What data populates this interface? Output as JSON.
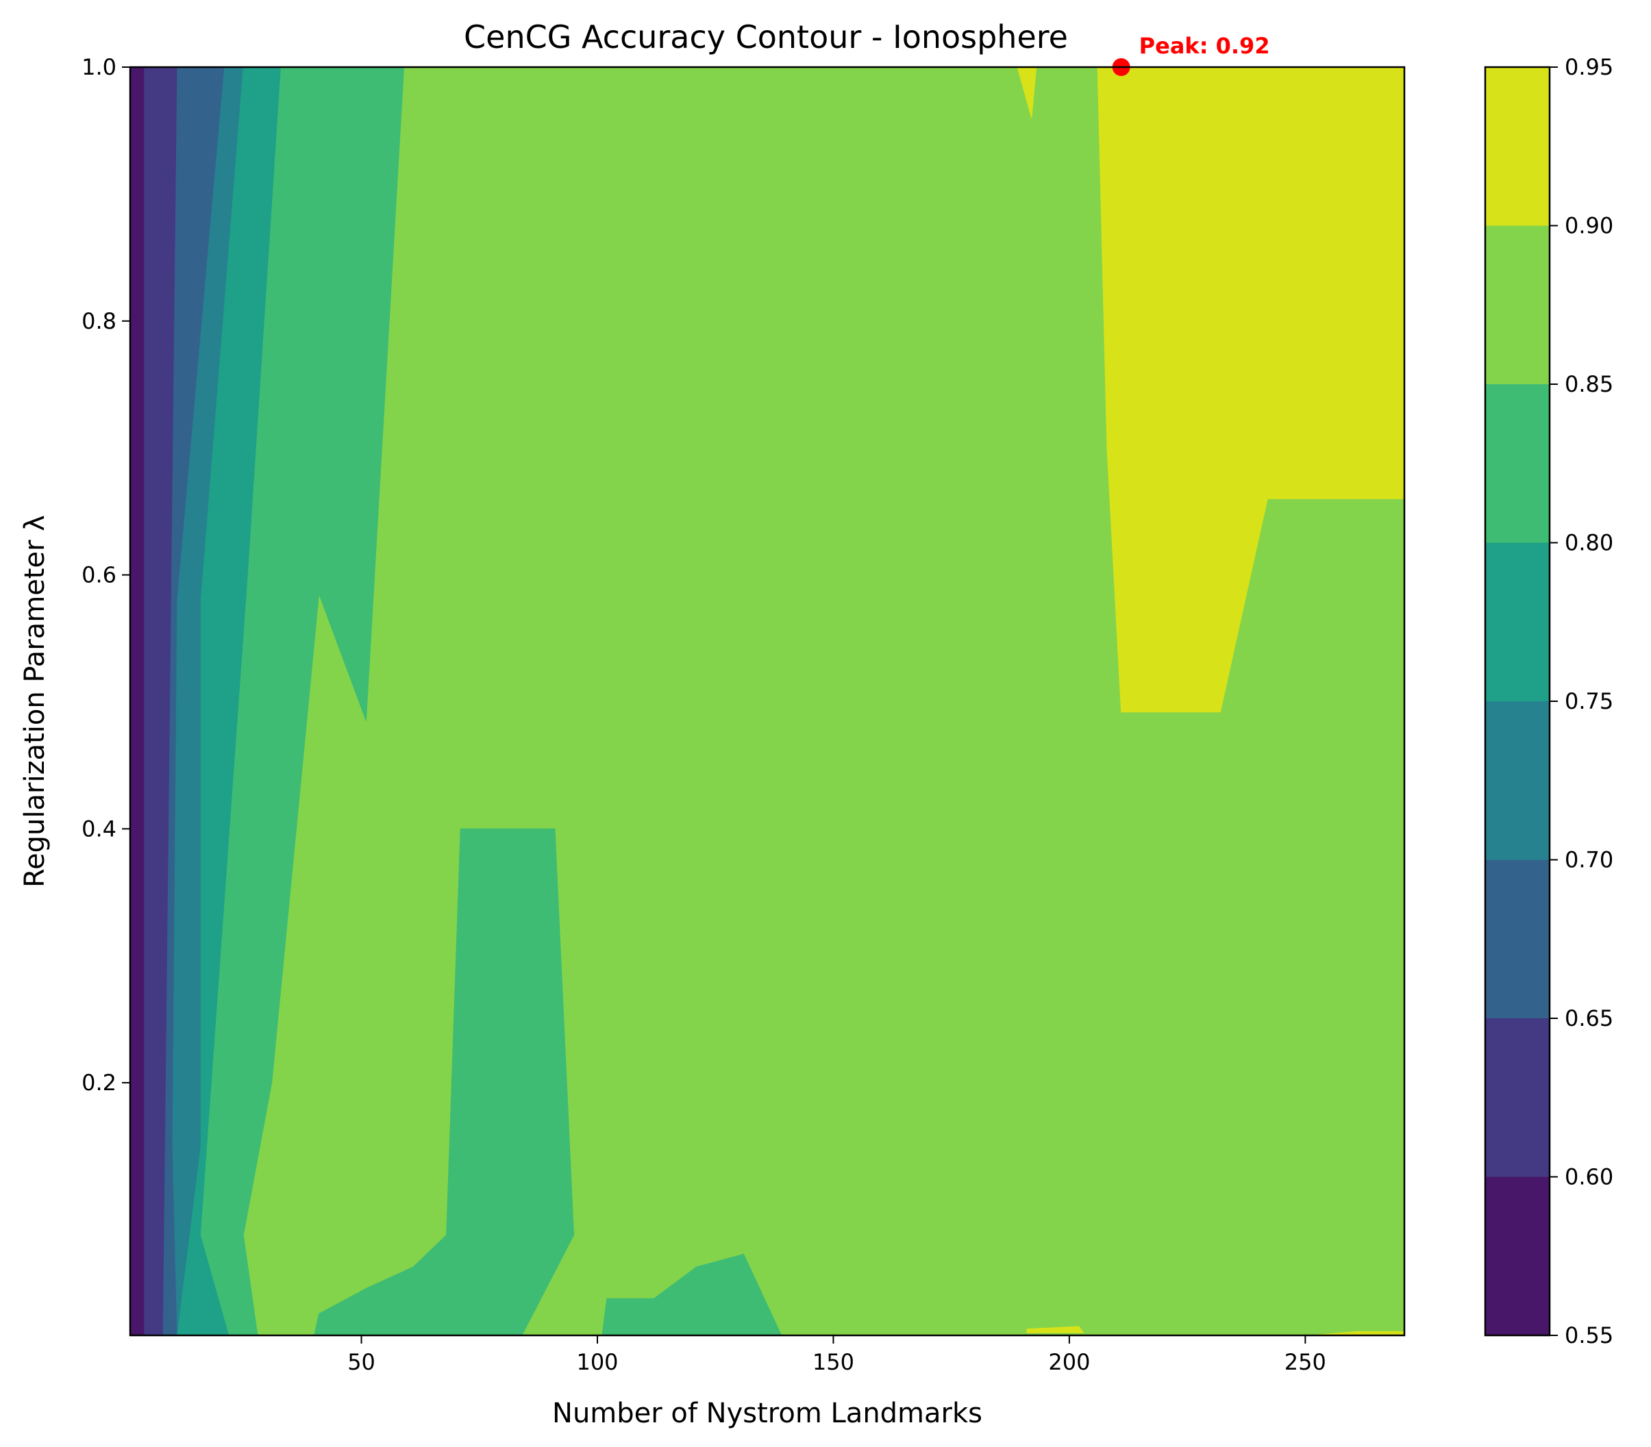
{
  "chart_data": {
    "type": "contour",
    "title": "CenCG Accuracy Contour - Ionosphere",
    "xlabel": "Number of Nystrom Landmarks",
    "ylabel": "Regularization Parameter λ",
    "xlim": [
      1,
      271
    ],
    "ylim": [
      0.001,
      1.0
    ],
    "x_ticks": [
      50,
      100,
      150,
      200,
      250
    ],
    "x_tick_labels": [
      "50",
      "100",
      "150",
      "200",
      "250"
    ],
    "y_ticks": [
      0.2,
      0.4,
      0.6,
      0.8,
      1.0
    ],
    "y_tick_labels": [
      "0.2",
      "0.4",
      "0.6",
      "0.8",
      "1.0"
    ],
    "grid": false,
    "legend": "none",
    "colorbar": {
      "levels": [
        0.55,
        0.6,
        0.65,
        0.7,
        0.75,
        0.8,
        0.85,
        0.9,
        0.95
      ],
      "tick_labels": [
        "0.55",
        "0.60",
        "0.65",
        "0.70",
        "0.75",
        "0.80",
        "0.85",
        "0.90",
        "0.95"
      ],
      "colors": [
        "#481769",
        "#443983",
        "#33638d",
        "#26828e",
        "#1fa088",
        "#3fbc73",
        "#84d44b",
        "#d8e219"
      ]
    },
    "regions": [
      {
        "band": "0.55-0.60",
        "color": "#481769",
        "polygon": [
          [
            1,
            1.0
          ],
          [
            4,
            1.0
          ],
          [
            4,
            0.001
          ],
          [
            1,
            0.001
          ]
        ]
      },
      {
        "band": "0.60-0.65",
        "color": "#443983",
        "polygon": [
          [
            4,
            1.0
          ],
          [
            11,
            1.0
          ],
          [
            8,
            0.001
          ],
          [
            4,
            0.001
          ]
        ]
      },
      {
        "band": "0.65-0.70",
        "color": "#33638d",
        "polygon": [
          [
            11,
            1.0
          ],
          [
            21,
            1.0
          ],
          [
            11,
            0.58
          ],
          [
            10,
            0.15
          ],
          [
            11,
            0.001
          ],
          [
            8,
            0.001
          ]
        ]
      },
      {
        "band": "0.70-0.75",
        "color": "#26828e",
        "polygon": [
          [
            21,
            1.0
          ],
          [
            25,
            1.0
          ],
          [
            16,
            0.58
          ],
          [
            16,
            0.15
          ],
          [
            11,
            0.001
          ],
          [
            10,
            0.15
          ],
          [
            11,
            0.58
          ]
        ]
      },
      {
        "band": "0.75-0.80",
        "color": "#1fa088",
        "polygon": [
          [
            25,
            1.0
          ],
          [
            33,
            1.0
          ],
          [
            26,
            0.6
          ],
          [
            16,
            0.08
          ],
          [
            22,
            0.001
          ],
          [
            11,
            0.001
          ],
          [
            16,
            0.15
          ],
          [
            16,
            0.58
          ]
        ]
      },
      {
        "band": "0.80-0.85",
        "color": "#3fbc73",
        "polygon": [
          [
            33,
            1.0
          ],
          [
            59,
            1.0
          ],
          [
            51,
            0.485
          ],
          [
            41,
            0.585
          ],
          [
            31,
            0.2
          ],
          [
            25,
            0.08
          ],
          [
            28,
            0.001
          ],
          [
            22,
            0.001
          ],
          [
            16,
            0.08
          ],
          [
            26,
            0.6
          ]
        ]
      },
      {
        "band": "0.80-0.85",
        "color": "#3fbc73",
        "polygon": [
          [
            40,
            0.001
          ],
          [
            41,
            0.018
          ],
          [
            51,
            0.038
          ],
          [
            61,
            0.055
          ],
          [
            68,
            0.08
          ],
          [
            71,
            0.4
          ],
          [
            91,
            0.4
          ],
          [
            95,
            0.08
          ],
          [
            84,
            0.001
          ]
        ]
      },
      {
        "band": "0.80-0.85",
        "color": "#3fbc73",
        "polygon": [
          [
            101,
            0.001
          ],
          [
            102,
            0.03
          ],
          [
            112,
            0.03
          ],
          [
            121,
            0.055
          ],
          [
            131,
            0.065
          ],
          [
            139,
            0.001
          ]
        ]
      },
      {
        "band": "0.90-0.95",
        "color": "#d8e219",
        "polygon": [
          [
            189,
            1.0
          ],
          [
            193,
            1.0
          ],
          [
            192,
            0.96
          ]
        ]
      },
      {
        "band": "0.90-0.95",
        "color": "#d8e219",
        "polygon": [
          [
            206,
            1.0
          ],
          [
            271,
            1.0
          ],
          [
            271,
            0.66
          ],
          [
            242,
            0.66
          ],
          [
            232,
            0.492
          ],
          [
            211,
            0.492
          ],
          [
            208,
            0.7
          ]
        ]
      },
      {
        "band": "0.90-0.95",
        "color": "#d8e219",
        "polygon": [
          [
            191,
            0.006
          ],
          [
            202,
            0.008
          ],
          [
            203,
            0.003
          ],
          [
            191,
            0.003
          ]
        ]
      },
      {
        "band": "0.90-0.95",
        "color": "#d8e219",
        "polygon": [
          [
            251,
            0.001
          ],
          [
            271,
            0.001
          ],
          [
            271,
            0.004
          ],
          [
            261,
            0.004
          ]
        ]
      }
    ],
    "peak": {
      "x": 211,
      "y": 1.0,
      "label": "Peak: 0.92",
      "color": "#ff0000"
    }
  }
}
